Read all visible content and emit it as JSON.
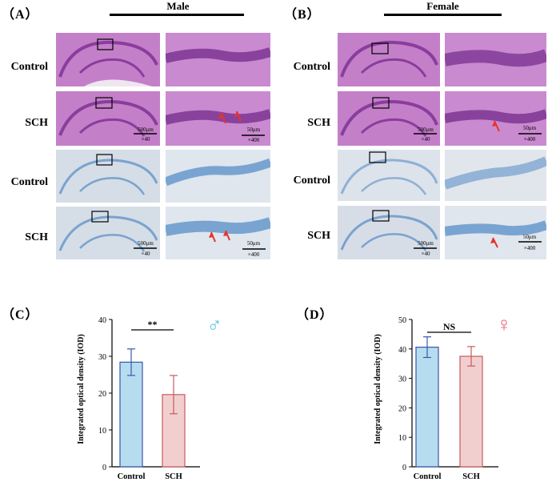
{
  "panels": {
    "A": {
      "label": "（A）",
      "header": "Male"
    },
    "B": {
      "label": "（B）",
      "header": "Female"
    },
    "C": {
      "label": "（C）"
    },
    "D": {
      "label": "（D）"
    }
  },
  "row_labels": [
    "Control",
    "SCH",
    "Control",
    "SCH"
  ],
  "scale": {
    "low_bar": "500μm",
    "low_mag": "×40",
    "high_bar": "50μm",
    "high_mag": "×400"
  },
  "colors": {
    "he_bg": "#c27fc8",
    "he_layer": "#8e3f9e",
    "nissl_bg": "#cfd9e3",
    "nissl_layer": "#6f9ed0",
    "control_fill": "#b6dcf0",
    "control_edge": "#3a56a8",
    "sch_fill": "#f2cfcf",
    "sch_edge": "#c85a5a",
    "arrow": "#e8322a",
    "male_symbol": "#5bc4d8",
    "female_symbol": "#e8607a"
  },
  "chart_data": [
    {
      "type": "bar",
      "title": "",
      "ylabel": "Integrated optical density (IOD)",
      "categories": [
        "Control",
        "SCH"
      ],
      "values": [
        28.4,
        19.6
      ],
      "errors": [
        3.6,
        5.2
      ],
      "ylim": [
        0,
        40
      ],
      "yticks": [
        0,
        10,
        20,
        30,
        40
      ],
      "significance": "**",
      "symbol": "♂"
    },
    {
      "type": "bar",
      "title": "",
      "ylabel": "Integrated optical density (IOD)",
      "categories": [
        "Control",
        "SCH"
      ],
      "values": [
        40.6,
        37.5
      ],
      "errors": [
        3.5,
        3.3
      ],
      "ylim": [
        0,
        50
      ],
      "yticks": [
        0,
        10,
        20,
        30,
        40,
        50
      ],
      "significance": "NS",
      "symbol": "♀"
    }
  ]
}
